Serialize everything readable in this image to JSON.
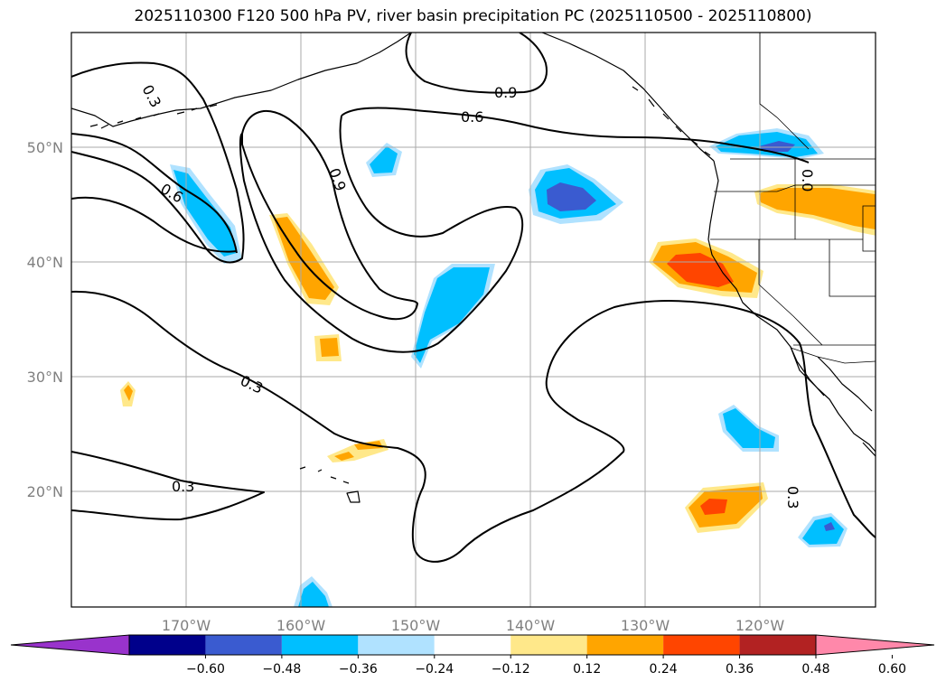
{
  "title": "2025110300 F120 500 hPa PV, river basin precipitation PC (2025110500 - 2025110800)",
  "lon_labels": [
    "170°W",
    "160°W",
    "150°W",
    "140°W",
    "130°W",
    "120°W"
  ],
  "lat_labels": [
    "50°N",
    "40°N",
    "30°N",
    "20°N"
  ],
  "contour_labels": [
    "0.3",
    "0.6",
    "0.9",
    "0.6",
    "0.9",
    "0.3",
    "0.3",
    "0.3",
    "0.0"
  ],
  "colorbar": {
    "ticks": [
      "−0.60",
      "−0.48",
      "−0.36",
      "−0.24",
      "−0.12",
      "0.12",
      "0.24",
      "0.36",
      "0.48",
      "0.60"
    ],
    "colors": [
      "#9933cc",
      "#00008b",
      "#3a5bd0",
      "#00bfff",
      "#b0e2ff",
      "#ffffff",
      "#ffe88a",
      "#ffa500",
      "#ff4500",
      "#b22222",
      "#ff88aa"
    ]
  },
  "colors": {
    "frame": "#000000",
    "grid": "#aaaaaa",
    "tick_text": "#808080"
  }
}
